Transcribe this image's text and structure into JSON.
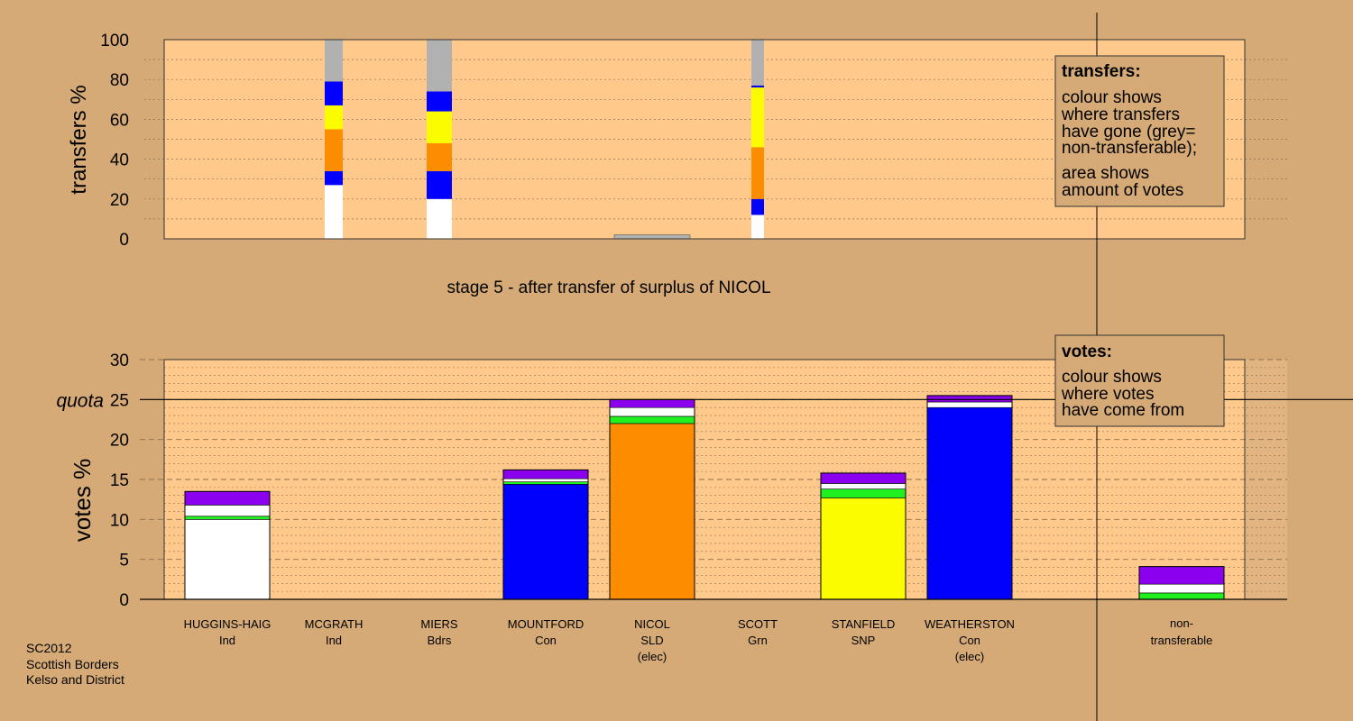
{
  "colors": {
    "background": "#d5aa76",
    "plot_background": "#fec98b",
    "grey": "#b1b1b1",
    "blue": "#0000fc",
    "yellow": "#fcfc00",
    "orange": "#fc8c00",
    "white": "#ffffff",
    "green": "#20f020",
    "purple": "#8c00f0"
  },
  "footer": {
    "line1": "SC2012",
    "line2": "Scottish Borders",
    "line3": "Kelso and District"
  },
  "stage_caption": "stage 5 - after transfer of surplus of NICOL",
  "legend_transfers": {
    "heading": "transfers:",
    "lines": [
      "colour shows",
      "where transfers",
      "have gone (grey=",
      "non-transferable);",
      "area shows",
      "amount of votes"
    ]
  },
  "legend_votes": {
    "heading": "votes:",
    "lines": [
      "colour shows",
      "where votes",
      "have come from"
    ]
  },
  "candidates": [
    {
      "name": "HUGGINS-HAIG",
      "party": "Ind",
      "note": ""
    },
    {
      "name": "MCGRATH",
      "party": "Ind",
      "note": ""
    },
    {
      "name": "MIERS",
      "party": "Bdrs",
      "note": ""
    },
    {
      "name": "MOUNTFORD",
      "party": "Con",
      "note": ""
    },
    {
      "name": "NICOL",
      "party": "SLD",
      "note": "(elec)"
    },
    {
      "name": "SCOTT",
      "party": "Grn",
      "note": ""
    },
    {
      "name": "STANFIELD",
      "party": "SNP",
      "note": ""
    },
    {
      "name": "WEATHERSTON",
      "party": "Con",
      "note": "(elec)"
    }
  ],
  "nontransferable_label": [
    "non-",
    "transferable"
  ],
  "chart_data": [
    {
      "type": "bar",
      "stacked": true,
      "ylabel": "transfers %",
      "ylim": [
        0,
        100
      ],
      "yticks": [
        0,
        20,
        40,
        60,
        80,
        100
      ],
      "grid": true,
      "legend_placement": "top-right",
      "bars": [
        {
          "category": "MCGRATH",
          "segments": [
            {
              "color": "white",
              "value": 27
            },
            {
              "color": "blue",
              "value": 7
            },
            {
              "color": "orange",
              "value": 21
            },
            {
              "color": "yellow",
              "value": 12
            },
            {
              "color": "blue",
              "value": 12
            },
            {
              "color": "grey",
              "value": 21
            }
          ]
        },
        {
          "category": "MIERS",
          "segments": [
            {
              "color": "white",
              "value": 20
            },
            {
              "color": "blue",
              "value": 14
            },
            {
              "color": "orange",
              "value": 14
            },
            {
              "color": "yellow",
              "value": 16
            },
            {
              "color": "blue",
              "value": 10
            },
            {
              "color": "grey",
              "value": 26
            }
          ]
        },
        {
          "category": "SCOTT",
          "segments": [
            {
              "color": "white",
              "value": 12
            },
            {
              "color": "blue",
              "value": 8
            },
            {
              "color": "orange",
              "value": 26
            },
            {
              "color": "yellow",
              "value": 30
            },
            {
              "color": "blue",
              "value": 1
            },
            {
              "color": "grey",
              "value": 23
            }
          ]
        }
      ],
      "nicol_surplus_sliver": {
        "category": "NICOL",
        "value": 2
      }
    },
    {
      "type": "bar",
      "stacked": true,
      "ylabel": "votes %",
      "ylim": [
        0,
        30
      ],
      "yticks": [
        0,
        5,
        10,
        15,
        20,
        25,
        30
      ],
      "quota": {
        "label": "quota",
        "value": 25
      },
      "grid": true,
      "legend_placement": "top-right",
      "bars": [
        {
          "category": "HUGGINS-HAIG",
          "segments": [
            {
              "color": "white",
              "value": 10
            },
            {
              "color": "green",
              "value": 0.4
            },
            {
              "color": "white",
              "value": 1.4
            },
            {
              "color": "purple",
              "value": 1.7
            }
          ]
        },
        {
          "category": "MCGRATH",
          "segments": []
        },
        {
          "category": "MIERS",
          "segments": []
        },
        {
          "category": "MOUNTFORD",
          "segments": [
            {
              "color": "blue",
              "value": 14.4
            },
            {
              "color": "green",
              "value": 0.3
            },
            {
              "color": "white",
              "value": 0.4
            },
            {
              "color": "purple",
              "value": 1.1
            }
          ]
        },
        {
          "category": "NICOL",
          "segments": [
            {
              "color": "orange",
              "value": 22
            },
            {
              "color": "green",
              "value": 0.9
            },
            {
              "color": "white",
              "value": 1.1
            },
            {
              "color": "purple",
              "value": 1
            }
          ]
        },
        {
          "category": "SCOTT",
          "segments": []
        },
        {
          "category": "STANFIELD",
          "segments": [
            {
              "color": "yellow",
              "value": 12.7
            },
            {
              "color": "green",
              "value": 1.1
            },
            {
              "color": "white",
              "value": 0.7
            },
            {
              "color": "purple",
              "value": 1.3
            }
          ]
        },
        {
          "category": "WEATHERSTON",
          "segments": [
            {
              "color": "blue",
              "value": 24
            },
            {
              "color": "white",
              "value": 0.7
            },
            {
              "color": "purple",
              "value": 0.8
            }
          ]
        },
        {
          "category": "non-transferable",
          "segments": [
            {
              "color": "green",
              "value": 0.8
            },
            {
              "color": "white",
              "value": 1.1
            },
            {
              "color": "purple",
              "value": 2.2
            }
          ]
        }
      ]
    }
  ]
}
